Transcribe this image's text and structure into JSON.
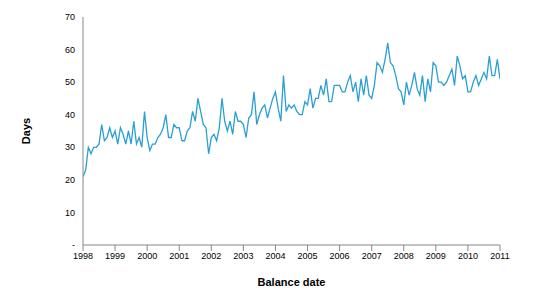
{
  "chart_data": {
    "type": "line",
    "x_label": "Balance date",
    "y_label": "Days",
    "color": "#2a9fd2",
    "grid": false,
    "xlim": [
      1998,
      2011
    ],
    "xticks": [
      1998,
      1999,
      2000,
      2001,
      2002,
      2003,
      2004,
      2005,
      2006,
      2007,
      2008,
      2009,
      2010,
      2011
    ],
    "ylim": [
      0,
      70
    ],
    "yticks": [
      {
        "value": 0,
        "label": "-"
      },
      10,
      20,
      30,
      40,
      50,
      60,
      70
    ],
    "x": [
      1998,
      1998.083,
      1998.167,
      1998.25,
      1998.333,
      1998.417,
      1998.5,
      1998.583,
      1998.667,
      1998.75,
      1998.833,
      1998.917,
      1999,
      1999.083,
      1999.167,
      1999.25,
      1999.333,
      1999.417,
      1999.5,
      1999.583,
      1999.667,
      1999.75,
      1999.833,
      1999.917,
      2000,
      2000.083,
      2000.167,
      2000.25,
      2000.333,
      2000.417,
      2000.5,
      2000.583,
      2000.667,
      2000.75,
      2000.833,
      2000.917,
      2001,
      2001.083,
      2001.167,
      2001.25,
      2001.333,
      2001.417,
      2001.5,
      2001.583,
      2001.667,
      2001.75,
      2001.833,
      2001.917,
      2002,
      2002.083,
      2002.167,
      2002.25,
      2002.333,
      2002.417,
      2002.5,
      2002.583,
      2002.667,
      2002.75,
      2002.833,
      2002.917,
      2003,
      2003.083,
      2003.167,
      2003.25,
      2003.333,
      2003.417,
      2003.5,
      2003.583,
      2003.667,
      2003.75,
      2003.833,
      2003.917,
      2004,
      2004.083,
      2004.167,
      2004.25,
      2004.333,
      2004.417,
      2004.5,
      2004.583,
      2004.667,
      2004.75,
      2004.833,
      2004.917,
      2005,
      2005.083,
      2005.167,
      2005.25,
      2005.333,
      2005.417,
      2005.5,
      2005.583,
      2005.667,
      2005.75,
      2005.833,
      2005.917,
      2006,
      2006.083,
      2006.167,
      2006.25,
      2006.333,
      2006.417,
      2006.5,
      2006.583,
      2006.667,
      2006.75,
      2006.833,
      2006.917,
      2007,
      2007.083,
      2007.167,
      2007.25,
      2007.333,
      2007.417,
      2007.5,
      2007.583,
      2007.667,
      2007.75,
      2007.833,
      2007.917,
      2008,
      2008.083,
      2008.167,
      2008.25,
      2008.333,
      2008.417,
      2008.5,
      2008.583,
      2008.667,
      2008.75,
      2008.833,
      2008.917,
      2009,
      2009.083,
      2009.167,
      2009.25,
      2009.333,
      2009.417,
      2009.5,
      2009.583,
      2009.667,
      2009.75,
      2009.833,
      2009.917,
      2010,
      2010.083,
      2010.167,
      2010.25,
      2010.333,
      2010.417,
      2010.5,
      2010.583,
      2010.667,
      2010.75,
      2010.833,
      2010.917,
      2011
    ],
    "values": [
      21,
      23,
      30,
      28,
      30,
      30,
      31,
      37,
      32,
      33,
      36,
      33,
      35,
      31,
      36,
      34,
      31,
      35,
      31,
      38,
      31,
      33,
      30,
      41,
      33,
      29,
      31,
      31,
      33,
      34,
      36,
      40,
      33,
      33,
      37,
      36,
      36,
      32,
      32,
      35,
      36,
      41,
      38,
      45,
      41,
      37,
      36,
      28,
      33,
      34,
      32,
      36,
      45,
      38,
      35,
      38,
      34,
      41,
      38,
      38,
      37,
      33,
      39,
      40,
      47,
      37,
      40,
      42,
      43,
      39,
      42,
      45,
      47,
      42,
      38,
      52,
      41,
      43,
      42,
      43,
      41,
      40,
      40,
      44,
      43,
      48,
      42,
      45,
      45,
      49,
      46,
      51,
      44,
      44,
      49,
      49,
      49,
      47,
      47,
      50,
      52,
      47,
      50,
      44,
      51,
      46,
      52,
      46,
      45,
      49,
      56,
      55,
      53,
      57,
      62,
      56,
      55,
      52,
      48,
      47,
      43,
      50,
      46,
      49,
      53,
      48,
      46,
      52,
      44,
      51,
      47,
      56,
      55,
      50,
      50,
      49,
      50,
      52,
      54,
      49,
      58,
      55,
      51,
      52,
      47,
      47,
      50,
      52,
      49,
      51,
      53,
      51,
      58,
      52,
      52,
      57,
      51
    ]
  }
}
